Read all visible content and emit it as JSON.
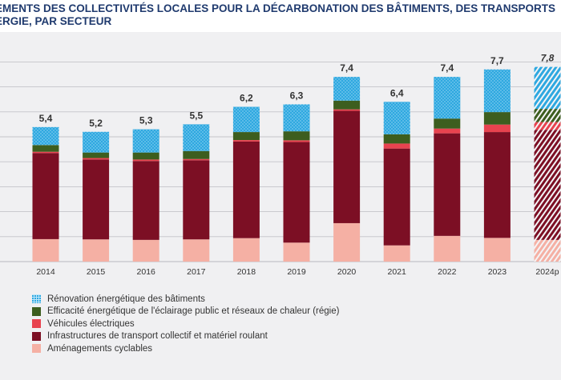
{
  "title_lines": [
    "EMENTS DES COLLECTIVITÉS LOCALES POUR LA DÉCARBONATION DES BÂTIMENTS, DES TRANSPORTS",
    "ERGIE, PAR SECTEUR"
  ],
  "chart_data": {
    "type": "bar",
    "stacked": true,
    "categories": [
      "2014",
      "2015",
      "2016",
      "2017",
      "2018",
      "2019",
      "2020",
      "2021",
      "2022",
      "2023",
      "2024p"
    ],
    "totals": [
      "5,4",
      "5,2",
      "5,3",
      "5,5",
      "6,2",
      "6,3",
      "7,4",
      "6,4",
      "7,4",
      "7,7",
      "7,8"
    ],
    "projected_category": "2024p",
    "ylim": [
      0,
      8
    ],
    "grid": true,
    "legend_position": "bottom-left",
    "series": [
      {
        "name": "Aménagements cyclables",
        "color": "#f5b0a4",
        "values": [
          0.9,
          0.89,
          0.87,
          0.89,
          0.94,
          0.76,
          1.54,
          0.65,
          1.03,
          0.95,
          0.87
        ]
      },
      {
        "name": "Infrastructures de transport collectif et matériel roulant",
        "color": "#7c0f24",
        "values": [
          3.45,
          3.2,
          3.16,
          3.17,
          3.87,
          4.03,
          4.5,
          3.88,
          4.11,
          4.24,
          4.41
        ]
      },
      {
        "name": "Véhicules électriques",
        "color": "#e8434f",
        "values": [
          0.05,
          0.06,
          0.06,
          0.05,
          0.06,
          0.07,
          0.06,
          0.2,
          0.19,
          0.3,
          0.31
        ]
      },
      {
        "name": "Efficacité énergétique de l'éclairage public et réseaux de chaleur (régie)",
        "color": "#3d5e1f",
        "values": [
          0.27,
          0.22,
          0.28,
          0.32,
          0.32,
          0.36,
          0.35,
          0.37,
          0.4,
          0.5,
          0.53
        ]
      },
      {
        "name": "Rénovation énergétique des bâtiments",
        "color": "#2ea8e0",
        "values": [
          0.72,
          0.83,
          0.93,
          1.07,
          1.01,
          1.08,
          0.95,
          1.3,
          1.67,
          1.71,
          1.68
        ]
      }
    ],
    "legend_order": [
      4,
      3,
      2,
      1,
      0
    ]
  }
}
